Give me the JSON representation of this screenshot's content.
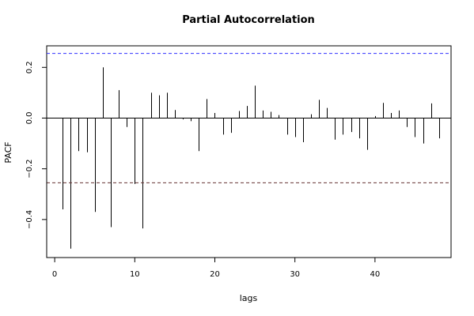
{
  "chart_data": {
    "type": "bar",
    "title": "Partial Autocorrelation",
    "xlabel": "lags",
    "ylabel": "PACF",
    "xlim": [
      -1,
      49.5
    ],
    "ylim": [
      -0.55,
      0.285
    ],
    "x_ticks": [
      0,
      10,
      20,
      30,
      40
    ],
    "y_ticks": [
      -0.4,
      -0.2,
      0.0,
      0.2
    ],
    "y_tick_labels": [
      "−0.4",
      "−0.2",
      "0.0",
      "0.2"
    ],
    "grid": false,
    "confidence_bounds": {
      "upper": 0.255,
      "lower": -0.255,
      "upper_color": "#3333ff",
      "lower_color": "#663333",
      "style": "dashed"
    },
    "x": [
      1,
      2,
      3,
      4,
      5,
      6,
      7,
      8,
      9,
      10,
      11,
      12,
      13,
      14,
      15,
      16,
      17,
      18,
      19,
      20,
      21,
      22,
      23,
      24,
      25,
      26,
      27,
      28,
      29,
      30,
      31,
      32,
      33,
      34,
      35,
      36,
      37,
      38,
      39,
      40,
      41,
      42,
      43,
      44,
      45,
      46,
      47,
      48
    ],
    "values": [
      -0.36,
      -0.515,
      -0.13,
      -0.135,
      -0.37,
      0.2,
      -0.43,
      0.11,
      -0.035,
      -0.26,
      -0.435,
      0.1,
      0.09,
      0.1,
      0.032,
      -0.005,
      -0.012,
      -0.13,
      0.075,
      0.02,
      -0.065,
      -0.058,
      0.028,
      0.048,
      0.128,
      0.03,
      0.025,
      0.012,
      -0.065,
      -0.075,
      -0.095,
      0.015,
      0.072,
      0.04,
      -0.085,
      -0.065,
      -0.055,
      -0.08,
      -0.125,
      0.008,
      0.06,
      0.02,
      0.03,
      -0.035,
      -0.075,
      -0.1,
      0.058,
      -0.08
    ]
  }
}
